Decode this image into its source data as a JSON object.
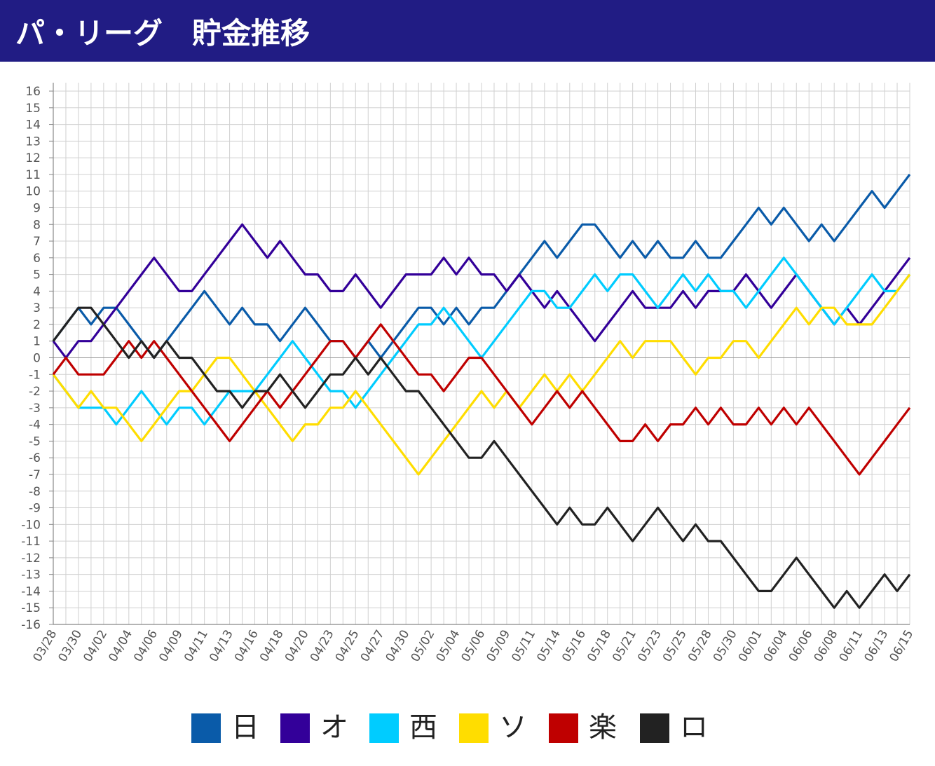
{
  "chart_data": {
    "type": "line",
    "title": "パ・リーグ　貯金推移",
    "categories": [
      "03/28",
      null,
      "03/30",
      null,
      "04/02",
      null,
      "04/04",
      null,
      "04/06",
      null,
      "04/09",
      null,
      "04/11",
      null,
      "04/13",
      null,
      "04/16",
      null,
      "04/18",
      null,
      "04/20",
      null,
      "04/23",
      null,
      "04/25",
      null,
      "04/27",
      null,
      "04/30",
      null,
      "05/02",
      null,
      "05/04",
      null,
      "05/06",
      null,
      "05/09",
      null,
      "05/11",
      null,
      "05/14",
      null,
      "05/16",
      null,
      "05/18",
      null,
      "05/21",
      null,
      "05/23",
      null,
      "05/25",
      null,
      "05/28",
      null,
      "05/30",
      null,
      "06/01",
      null,
      "06/04",
      null,
      "06/06",
      null,
      "06/08",
      null,
      "06/11",
      null,
      "06/13",
      null,
      "06/15"
    ],
    "series": [
      {
        "name": "日",
        "color": "#0a5ba9",
        "values": [
          1,
          2,
          3,
          2,
          3,
          3,
          2,
          1,
          0,
          1,
          2,
          3,
          4,
          3,
          2,
          3,
          2,
          2,
          1,
          2,
          3,
          2,
          1,
          1,
          0,
          1,
          0,
          1,
          2,
          3,
          3,
          2,
          3,
          2,
          3,
          3,
          4,
          5,
          6,
          7,
          6,
          7,
          8,
          8,
          7,
          6,
          7,
          6,
          7,
          6,
          6,
          7,
          6,
          6,
          7,
          8,
          9,
          8,
          9,
          8,
          7,
          8,
          7,
          8,
          9,
          10,
          9,
          10,
          11
        ]
      },
      {
        "name": "オ",
        "color": "#330099",
        "values": [
          1,
          0,
          1,
          1,
          2,
          3,
          4,
          5,
          6,
          5,
          4,
          4,
          5,
          6,
          7,
          8,
          7,
          6,
          7,
          6,
          5,
          5,
          4,
          4,
          5,
          4,
          3,
          4,
          5,
          5,
          5,
          6,
          5,
          6,
          5,
          5,
          4,
          5,
          4,
          3,
          4,
          3,
          2,
          1,
          2,
          3,
          4,
          3,
          3,
          3,
          4,
          3,
          4,
          4,
          4,
          5,
          4,
          3,
          4,
          5,
          4,
          3,
          2,
          3,
          2,
          3,
          4,
          5,
          6
        ]
      },
      {
        "name": "西",
        "color": "#00ccff",
        "values": [
          -1,
          -2,
          -3,
          -3,
          -3,
          -4,
          -3,
          -2,
          -3,
          -4,
          -3,
          -3,
          -4,
          -3,
          -2,
          -2,
          -2,
          -1,
          0,
          1,
          0,
          -1,
          -2,
          -2,
          -3,
          -2,
          -1,
          0,
          1,
          2,
          2,
          3,
          2,
          1,
          0,
          1,
          2,
          3,
          4,
          4,
          3,
          3,
          4,
          5,
          4,
          5,
          5,
          4,
          3,
          4,
          5,
          4,
          5,
          4,
          4,
          3,
          4,
          5,
          6,
          5,
          4,
          3,
          2,
          3,
          4,
          5,
          4,
          4,
          5
        ]
      },
      {
        "name": "ソ",
        "color": "#ffdd00",
        "values": [
          -1,
          -2,
          -3,
          -2,
          -3,
          -3,
          -4,
          -5,
          -4,
          -3,
          -2,
          -2,
          -1,
          0,
          0,
          -1,
          -2,
          -3,
          -4,
          -5,
          -4,
          -4,
          -3,
          -3,
          -2,
          -3,
          -4,
          -5,
          -6,
          -7,
          -6,
          -5,
          -4,
          -3,
          -2,
          -3,
          -2,
          -3,
          -2,
          -1,
          -2,
          -1,
          -2,
          -1,
          0,
          1,
          0,
          1,
          1,
          1,
          0,
          -1,
          0,
          0,
          1,
          1,
          0,
          1,
          2,
          3,
          2,
          3,
          3,
          2,
          2,
          2,
          3,
          4,
          5
        ]
      },
      {
        "name": "楽",
        "color": "#bf0000",
        "values": [
          -1,
          0,
          -1,
          -1,
          -1,
          0,
          1,
          0,
          1,
          0,
          -1,
          -2,
          -3,
          -4,
          -5,
          -4,
          -3,
          -2,
          -3,
          -2,
          -1,
          0,
          1,
          1,
          0,
          1,
          2,
          1,
          0,
          -1,
          -1,
          -2,
          -1,
          0,
          0,
          -1,
          -2,
          -3,
          -4,
          -3,
          -2,
          -3,
          -2,
          -3,
          -4,
          -5,
          -5,
          -4,
          -5,
          -4,
          -4,
          -3,
          -4,
          -3,
          -4,
          -4,
          -3,
          -4,
          -3,
          -4,
          -3,
          -4,
          -5,
          -6,
          -7,
          -6,
          -5,
          -4,
          -3
        ]
      },
      {
        "name": "ロ",
        "color": "#222222",
        "values": [
          1,
          2,
          3,
          3,
          2,
          1,
          0,
          1,
          0,
          1,
          0,
          0,
          -1,
          -2,
          -2,
          -3,
          -2,
          -2,
          -1,
          -2,
          -3,
          -2,
          -1,
          -1,
          0,
          -1,
          0,
          -1,
          -2,
          -2,
          -3,
          -4,
          -5,
          -6,
          -6,
          -5,
          -6,
          -7,
          -8,
          -9,
          -10,
          -9,
          -10,
          -10,
          -9,
          -10,
          -11,
          -10,
          -9,
          -10,
          -11,
          -10,
          -11,
          -11,
          -12,
          -13,
          -14,
          -14,
          -13,
          -12,
          -13,
          -14,
          -15,
          -14,
          -15,
          -14,
          -13,
          -14,
          -13
        ]
      }
    ],
    "ylim": [
      -16,
      16
    ],
    "yticks": [
      -16,
      -15,
      -14,
      -13,
      -12,
      -11,
      -10,
      -9,
      -8,
      -7,
      -6,
      -5,
      -4,
      -3,
      -2,
      -1,
      0,
      1,
      2,
      3,
      4,
      5,
      6,
      7,
      8,
      9,
      10,
      11,
      12,
      13,
      14,
      15,
      16
    ],
    "grid": true
  }
}
